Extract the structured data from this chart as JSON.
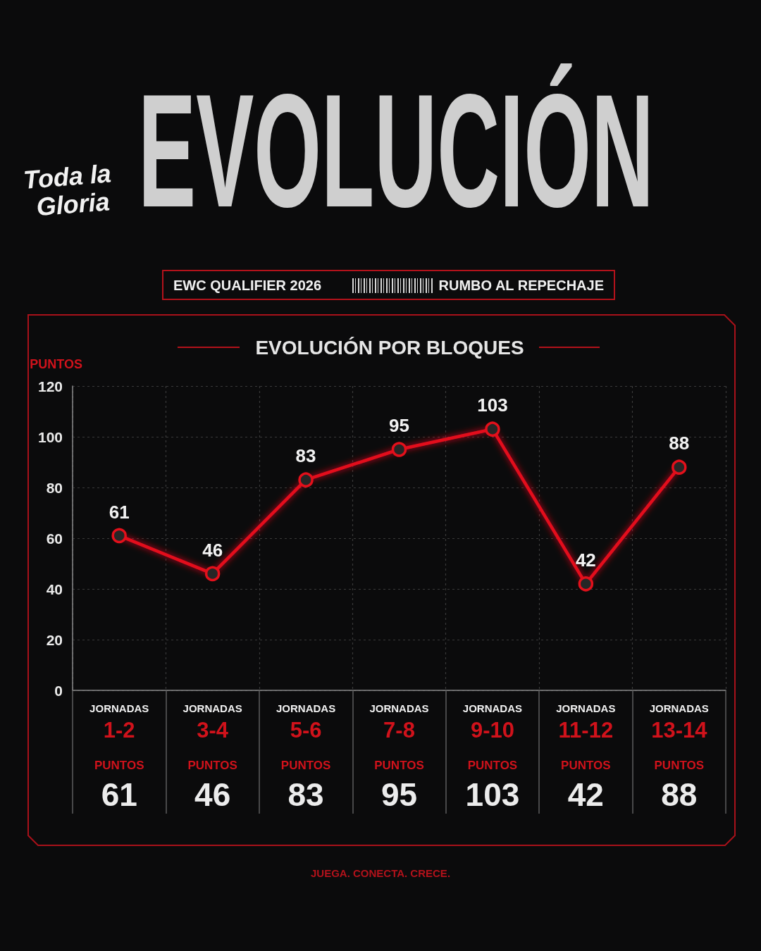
{
  "chart_data": {
    "type": "line",
    "title": "EVOLUCIÓN POR BLOQUES",
    "ylabel": "PUNTOS",
    "annotations": [
      "EVOLUCIÓN",
      "Toda la Gloria",
      "EWC QUALIFIER 2026",
      "RUMBO AL REPECHAJE",
      "JUEGA. CONECTA. CRECE."
    ],
    "categories": [
      "JORNADAS\n1-2",
      "JORNADAS\n3-4",
      "JORNADAS\n5-6",
      "JORNADAS\n7-8",
      "JORNADAS\n9-10",
      "JORNADAS\n11-12",
      "JORNADAS\n13-14"
    ],
    "values": [
      61,
      46,
      83,
      95,
      103,
      42,
      88
    ],
    "value_labels": [
      "61",
      "46",
      "83",
      "95",
      "103",
      "42",
      "88"
    ],
    "color": "#e3101b",
    "ylim": [
      0,
      120
    ],
    "yticks": [
      0,
      20,
      40,
      60,
      80,
      100,
      120
    ],
    "grid": true,
    "marker": "circle",
    "data_labels": true
  }
}
